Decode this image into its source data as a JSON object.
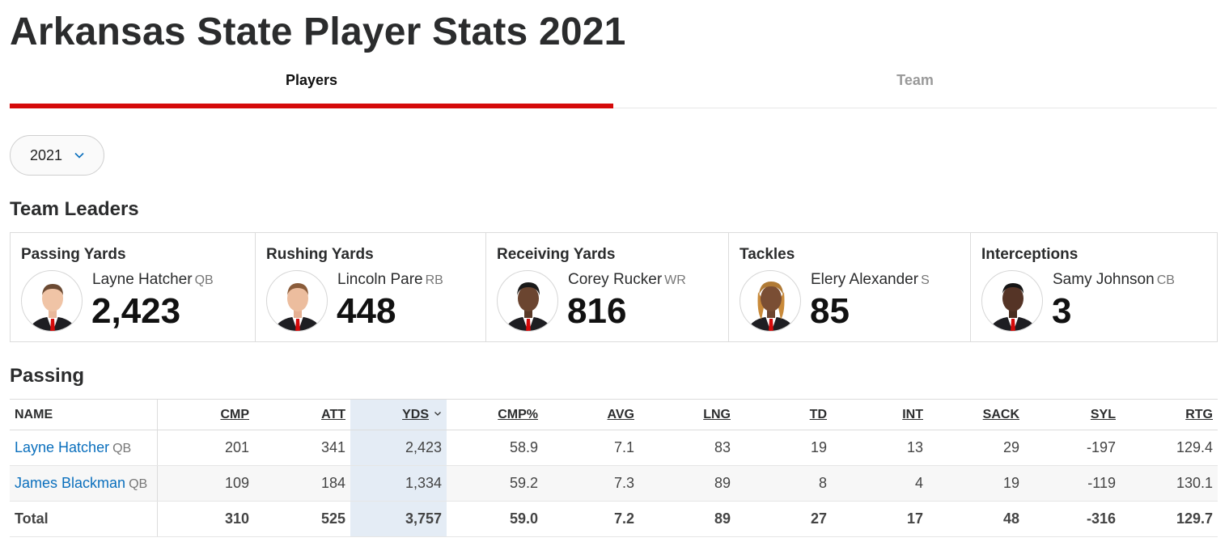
{
  "page": {
    "title": "Arkansas State Player Stats 2021"
  },
  "tabs": [
    {
      "label": "Players",
      "active": true
    },
    {
      "label": "Team",
      "active": false
    }
  ],
  "year_select": {
    "value": "2021",
    "icon": "chevron-down-icon"
  },
  "leaders_section": {
    "title": "Team Leaders",
    "items": [
      {
        "category": "Passing Yards",
        "player": "Layne Hatcher",
        "position": "QB",
        "value": "2,423"
      },
      {
        "category": "Rushing Yards",
        "player": "Lincoln Pare",
        "position": "RB",
        "value": "448"
      },
      {
        "category": "Receiving Yards",
        "player": "Corey Rucker",
        "position": "WR",
        "value": "816"
      },
      {
        "category": "Tackles",
        "player": "Elery Alexander",
        "position": "S",
        "value": "85"
      },
      {
        "category": "Interceptions",
        "player": "Samy Johnson",
        "position": "CB",
        "value": "3"
      }
    ]
  },
  "passing": {
    "title": "Passing",
    "columns": [
      "NAME",
      "CMP",
      "ATT",
      "YDS",
      "CMP%",
      "AVG",
      "LNG",
      "TD",
      "INT",
      "SACK",
      "SYL",
      "RTG"
    ],
    "sorted_column": "YDS",
    "rows": [
      {
        "name": "Layne Hatcher",
        "position": "QB",
        "values": [
          "201",
          "341",
          "2,423",
          "58.9",
          "7.1",
          "83",
          "19",
          "13",
          "29",
          "-197",
          "129.4"
        ]
      },
      {
        "name": "James Blackman",
        "position": "QB",
        "values": [
          "109",
          "184",
          "1,334",
          "59.2",
          "7.3",
          "89",
          "8",
          "4",
          "19",
          "-119",
          "130.1"
        ]
      }
    ],
    "total": {
      "label": "Total",
      "values": [
        "310",
        "525",
        "3,757",
        "59.0",
        "7.2",
        "89",
        "27",
        "17",
        "48",
        "-316",
        "129.7"
      ]
    }
  },
  "colors": {
    "accent": "#d50a0a",
    "link": "#0a6fbd",
    "sorted_column_bg": "#e4ecf5"
  }
}
